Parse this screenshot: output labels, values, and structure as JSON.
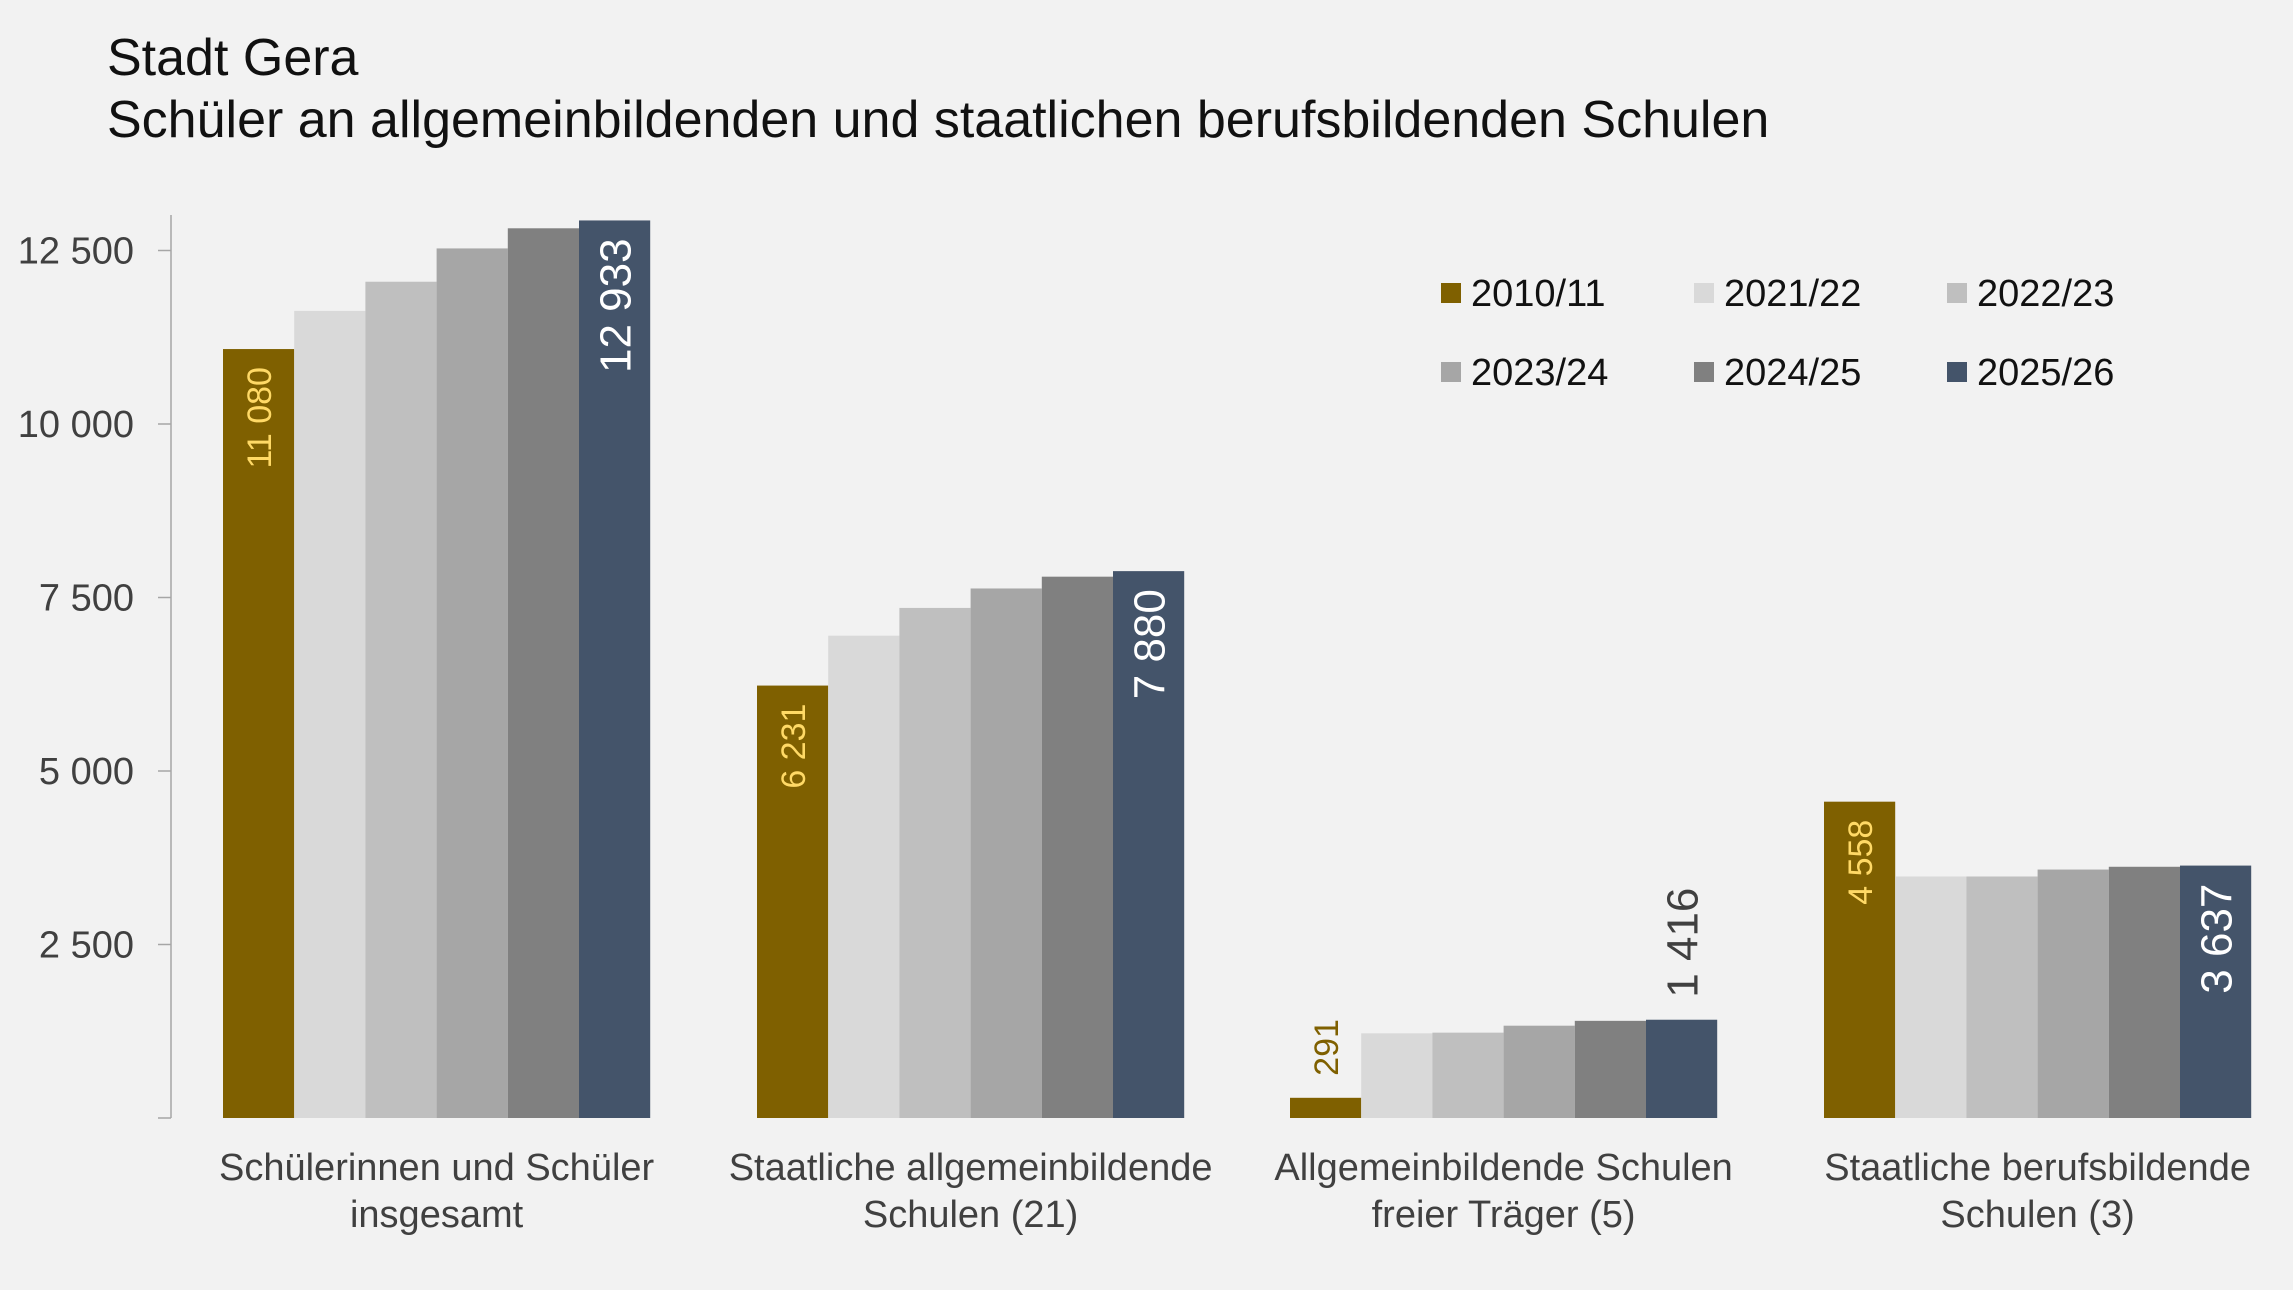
{
  "chart_data": {
    "type": "bar",
    "title": "Stadt Gera",
    "subtitle": "Schüler an allgemeinbildenden und staatlichen berufsbildenden Schulen",
    "categories": [
      [
        "Schülerinnen und Schüler",
        "insgesamt"
      ],
      [
        "Staatliche allgemeinbildende",
        "Schulen (21)"
      ],
      [
        "Allgemeinbildende Schulen",
        "freier Träger (5)"
      ],
      [
        "Staatliche berufsbildende",
        "Schulen (3)"
      ]
    ],
    "series": [
      {
        "name": "2010/11",
        "color": "#7f6000",
        "values": [
          11080,
          6231,
          291,
          4558
        ]
      },
      {
        "name": "2021/22",
        "color": "#d9d9d9",
        "values": [
          11630,
          6950,
          1220,
          3480
        ]
      },
      {
        "name": "2022/23",
        "color": "#bfbfbf",
        "values": [
          12050,
          7350,
          1230,
          3480
        ]
      },
      {
        "name": "2023/24",
        "color": "#a6a6a6",
        "values": [
          12530,
          7630,
          1330,
          3580
        ]
      },
      {
        "name": "2024/25",
        "color": "#808080",
        "values": [
          12820,
          7800,
          1400,
          3620
        ]
      },
      {
        "name": "2025/26",
        "color": "#44546a",
        "values": [
          12933,
          7880,
          1416,
          3637
        ]
      }
    ],
    "data_labels": [
      {
        "series": 0,
        "category": 0,
        "text": "11 080",
        "color": "#ffd966",
        "position": "inside"
      },
      {
        "series": 5,
        "category": 0,
        "text": "12 933",
        "color": "#ffffff",
        "position": "inside"
      },
      {
        "series": 0,
        "category": 1,
        "text": "6 231",
        "color": "#ffd966",
        "position": "inside"
      },
      {
        "series": 5,
        "category": 1,
        "text": "7 880",
        "color": "#ffffff",
        "position": "inside"
      },
      {
        "series": 0,
        "category": 2,
        "text": "291",
        "color": "#7f6000",
        "position": "outside"
      },
      {
        "series": 5,
        "category": 2,
        "text": "1 416",
        "color": "#404040",
        "position": "outside"
      },
      {
        "series": 0,
        "category": 3,
        "text": "4 558",
        "color": "#ffd966",
        "position": "inside"
      },
      {
        "series": 5,
        "category": 3,
        "text": "3 637",
        "color": "#ffffff",
        "position": "inside"
      }
    ],
    "y_ticks": [
      {
        "value": 2500,
        "label": "2 500"
      },
      {
        "value": 5000,
        "label": "5 000"
      },
      {
        "value": 7500,
        "label": "7 500"
      },
      {
        "value": 10000,
        "label": "10 000"
      },
      {
        "value": 12500,
        "label": "12 500"
      }
    ],
    "ylim": [
      0,
      13000
    ],
    "xlabel": "",
    "ylabel": "",
    "grid": false,
    "legend_position": "top-right"
  }
}
